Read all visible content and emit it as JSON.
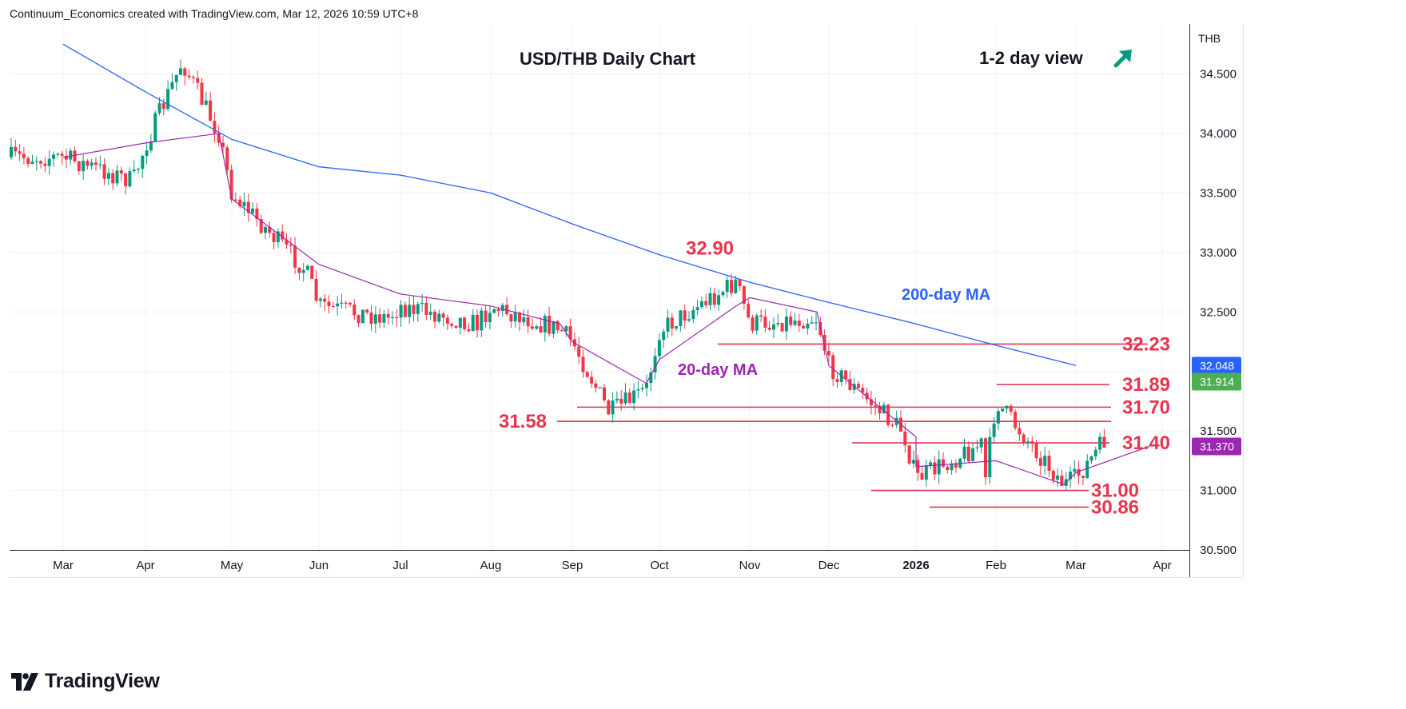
{
  "attribution": "Continuum_Economics created with TradingView.com, Mar 12, 2026 10:59 UTC+8",
  "logo": {
    "text": "TradingView"
  },
  "chart_data": {
    "type": "candlestick",
    "title": "USD/THB Daily Chart",
    "view_label": "1-2 day view",
    "view_direction": "up",
    "currency": "THB",
    "ylim": [
      30.5,
      34.9
    ],
    "y_ticks": [
      "34.500",
      "34.000",
      "33.500",
      "33.000",
      "32.500",
      "32.000",
      "31.500",
      "31.000",
      "30.500"
    ],
    "x_ticks": [
      "Mar",
      "Apr",
      "May",
      "Jun",
      "Jul",
      "Aug",
      "Sep",
      "Oct",
      "Nov",
      "Dec",
      "2026",
      "Feb",
      "Mar",
      "Apr"
    ],
    "grid": true,
    "colors": {
      "up": "#089981",
      "down": "#f23645",
      "ma200": "#2962ff",
      "ma20": "#9c27b0",
      "levels": "#e8344e",
      "arrow": "#089981"
    },
    "price_labels": [
      {
        "value": "32.048",
        "series": "200-day MA",
        "color": "#2962ff"
      },
      {
        "value": "31.914",
        "series": "price",
        "color": "#4caf50"
      },
      {
        "value": "31.370",
        "series": "20-day MA",
        "color": "#9c27b0"
      }
    ],
    "levels": [
      {
        "label": "32.90",
        "value": 32.9
      },
      {
        "label": "32.23",
        "value": 32.23
      },
      {
        "label": "31.89",
        "value": 31.89
      },
      {
        "label": "31.70",
        "value": 31.7
      },
      {
        "label": "31.58",
        "value": 31.58
      },
      {
        "label": "31.40",
        "value": 31.4
      },
      {
        "label": "31.00",
        "value": 31.0
      },
      {
        "label": "30.86",
        "value": 30.86
      }
    ],
    "series": [
      {
        "name": "200-day MA",
        "points": [
          [
            "Mar",
            34.75
          ],
          [
            "Apr",
            34.35
          ],
          [
            "May",
            33.95
          ],
          [
            "Jun",
            33.72
          ],
          [
            "Jul",
            33.65
          ],
          [
            "Aug",
            33.5
          ],
          [
            "Sep",
            33.24
          ],
          [
            "Oct",
            32.98
          ],
          [
            "Nov",
            32.75
          ],
          [
            "Dec",
            32.58
          ],
          [
            "2026",
            32.4
          ],
          [
            "Feb",
            32.22
          ],
          [
            "Mar",
            32.05
          ]
        ]
      },
      {
        "name": "20-day MA",
        "points": [
          [
            "Mar",
            33.8
          ],
          [
            "Apr",
            33.92
          ],
          [
            "Apr",
            34.0
          ],
          [
            "May",
            33.45
          ],
          [
            "Jun",
            32.9
          ],
          [
            "Jul",
            32.65
          ],
          [
            "Aug",
            32.55
          ],
          [
            "Aug",
            32.4
          ],
          [
            "Sep",
            32.25
          ],
          [
            "Sep",
            31.9
          ],
          [
            "Oct",
            32.1
          ],
          [
            "Oct",
            32.55
          ],
          [
            "Nov",
            32.62
          ],
          [
            "Nov",
            32.5
          ],
          [
            "Dec",
            32.05
          ],
          [
            "2026",
            31.45
          ],
          [
            "Jan",
            31.2
          ],
          [
            "Feb",
            31.25
          ],
          [
            "Feb",
            31.05
          ],
          [
            "Mar",
            31.15
          ],
          [
            "Mar",
            31.37
          ]
        ]
      },
      {
        "name": "price (close)",
        "points": [
          [
            "Mar",
            33.8
          ],
          [
            "Mar",
            33.6
          ],
          [
            "Apr",
            33.9
          ],
          [
            "Apr",
            34.6
          ],
          [
            "Apr",
            34.0
          ],
          [
            "May",
            33.5
          ],
          [
            "May",
            32.85
          ],
          [
            "Jun",
            32.55
          ],
          [
            "Jun",
            32.45
          ],
          [
            "Jul",
            32.55
          ],
          [
            "Jul",
            32.4
          ],
          [
            "Aug",
            32.55
          ],
          [
            "Aug",
            32.35
          ],
          [
            "Sep",
            32.25
          ],
          [
            "Sep",
            31.65
          ],
          [
            "Sep",
            31.85
          ],
          [
            "Oct",
            32.35
          ],
          [
            "Oct",
            32.75
          ],
          [
            "Nov",
            32.4
          ],
          [
            "Nov",
            32.45
          ],
          [
            "Dec",
            32.05
          ],
          [
            "Dec",
            31.5
          ],
          [
            "2026",
            31.1
          ],
          [
            "2026",
            31.4
          ],
          [
            "Jan",
            31.3
          ],
          [
            "Jan",
            31.0
          ],
          [
            "Feb",
            31.75
          ],
          [
            "Feb",
            31.05
          ],
          [
            "Mar",
            31.1
          ],
          [
            "Mar",
            31.91
          ]
        ]
      }
    ]
  }
}
